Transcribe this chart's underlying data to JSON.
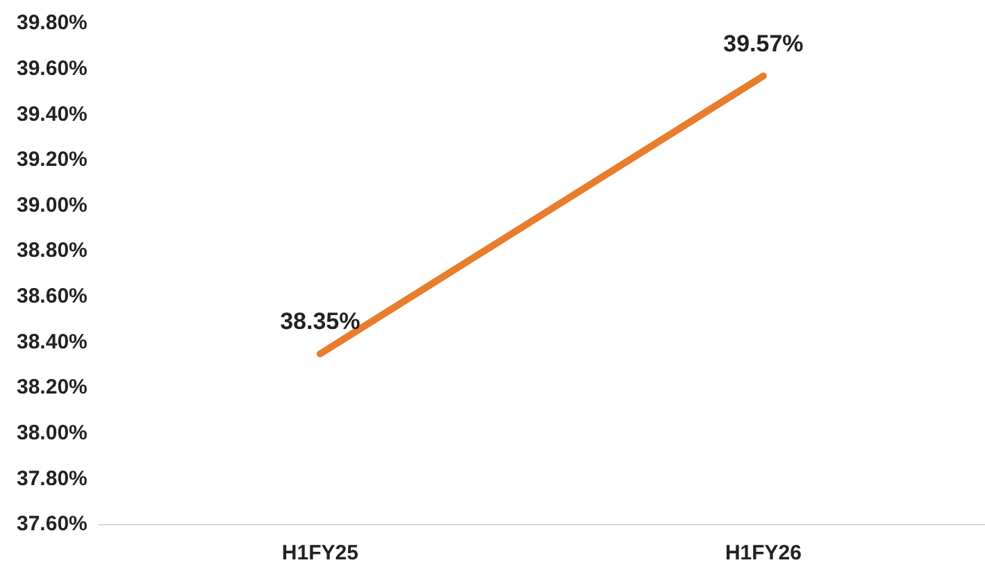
{
  "chart_data": {
    "type": "line",
    "categories": [
      "H1FY25",
      "H1FY26"
    ],
    "series": [
      {
        "color": "#e87d2e",
        "values": [
          38.35,
          39.57
        ],
        "value_labels": [
          "38.35%",
          "39.57%"
        ]
      }
    ],
    "ylim": [
      37.6,
      39.8
    ],
    "yticks": [
      {
        "value": 37.6,
        "label": "37.60%"
      },
      {
        "value": 37.8,
        "label": "37.80%"
      },
      {
        "value": 38.0,
        "label": "38.00%"
      },
      {
        "value": 38.2,
        "label": "38.20%"
      },
      {
        "value": 38.4,
        "label": "38.40%"
      },
      {
        "value": 38.6,
        "label": "38.60%"
      },
      {
        "value": 38.8,
        "label": "38.80%"
      },
      {
        "value": 39.0,
        "label": "39.00%"
      },
      {
        "value": 39.2,
        "label": "39.20%"
      },
      {
        "value": 39.4,
        "label": "39.40%"
      },
      {
        "value": 39.6,
        "label": "39.60%"
      },
      {
        "value": 39.8,
        "label": "39.80%"
      }
    ],
    "grid": false,
    "legend": false,
    "marker": "none",
    "line_style": "solid"
  }
}
